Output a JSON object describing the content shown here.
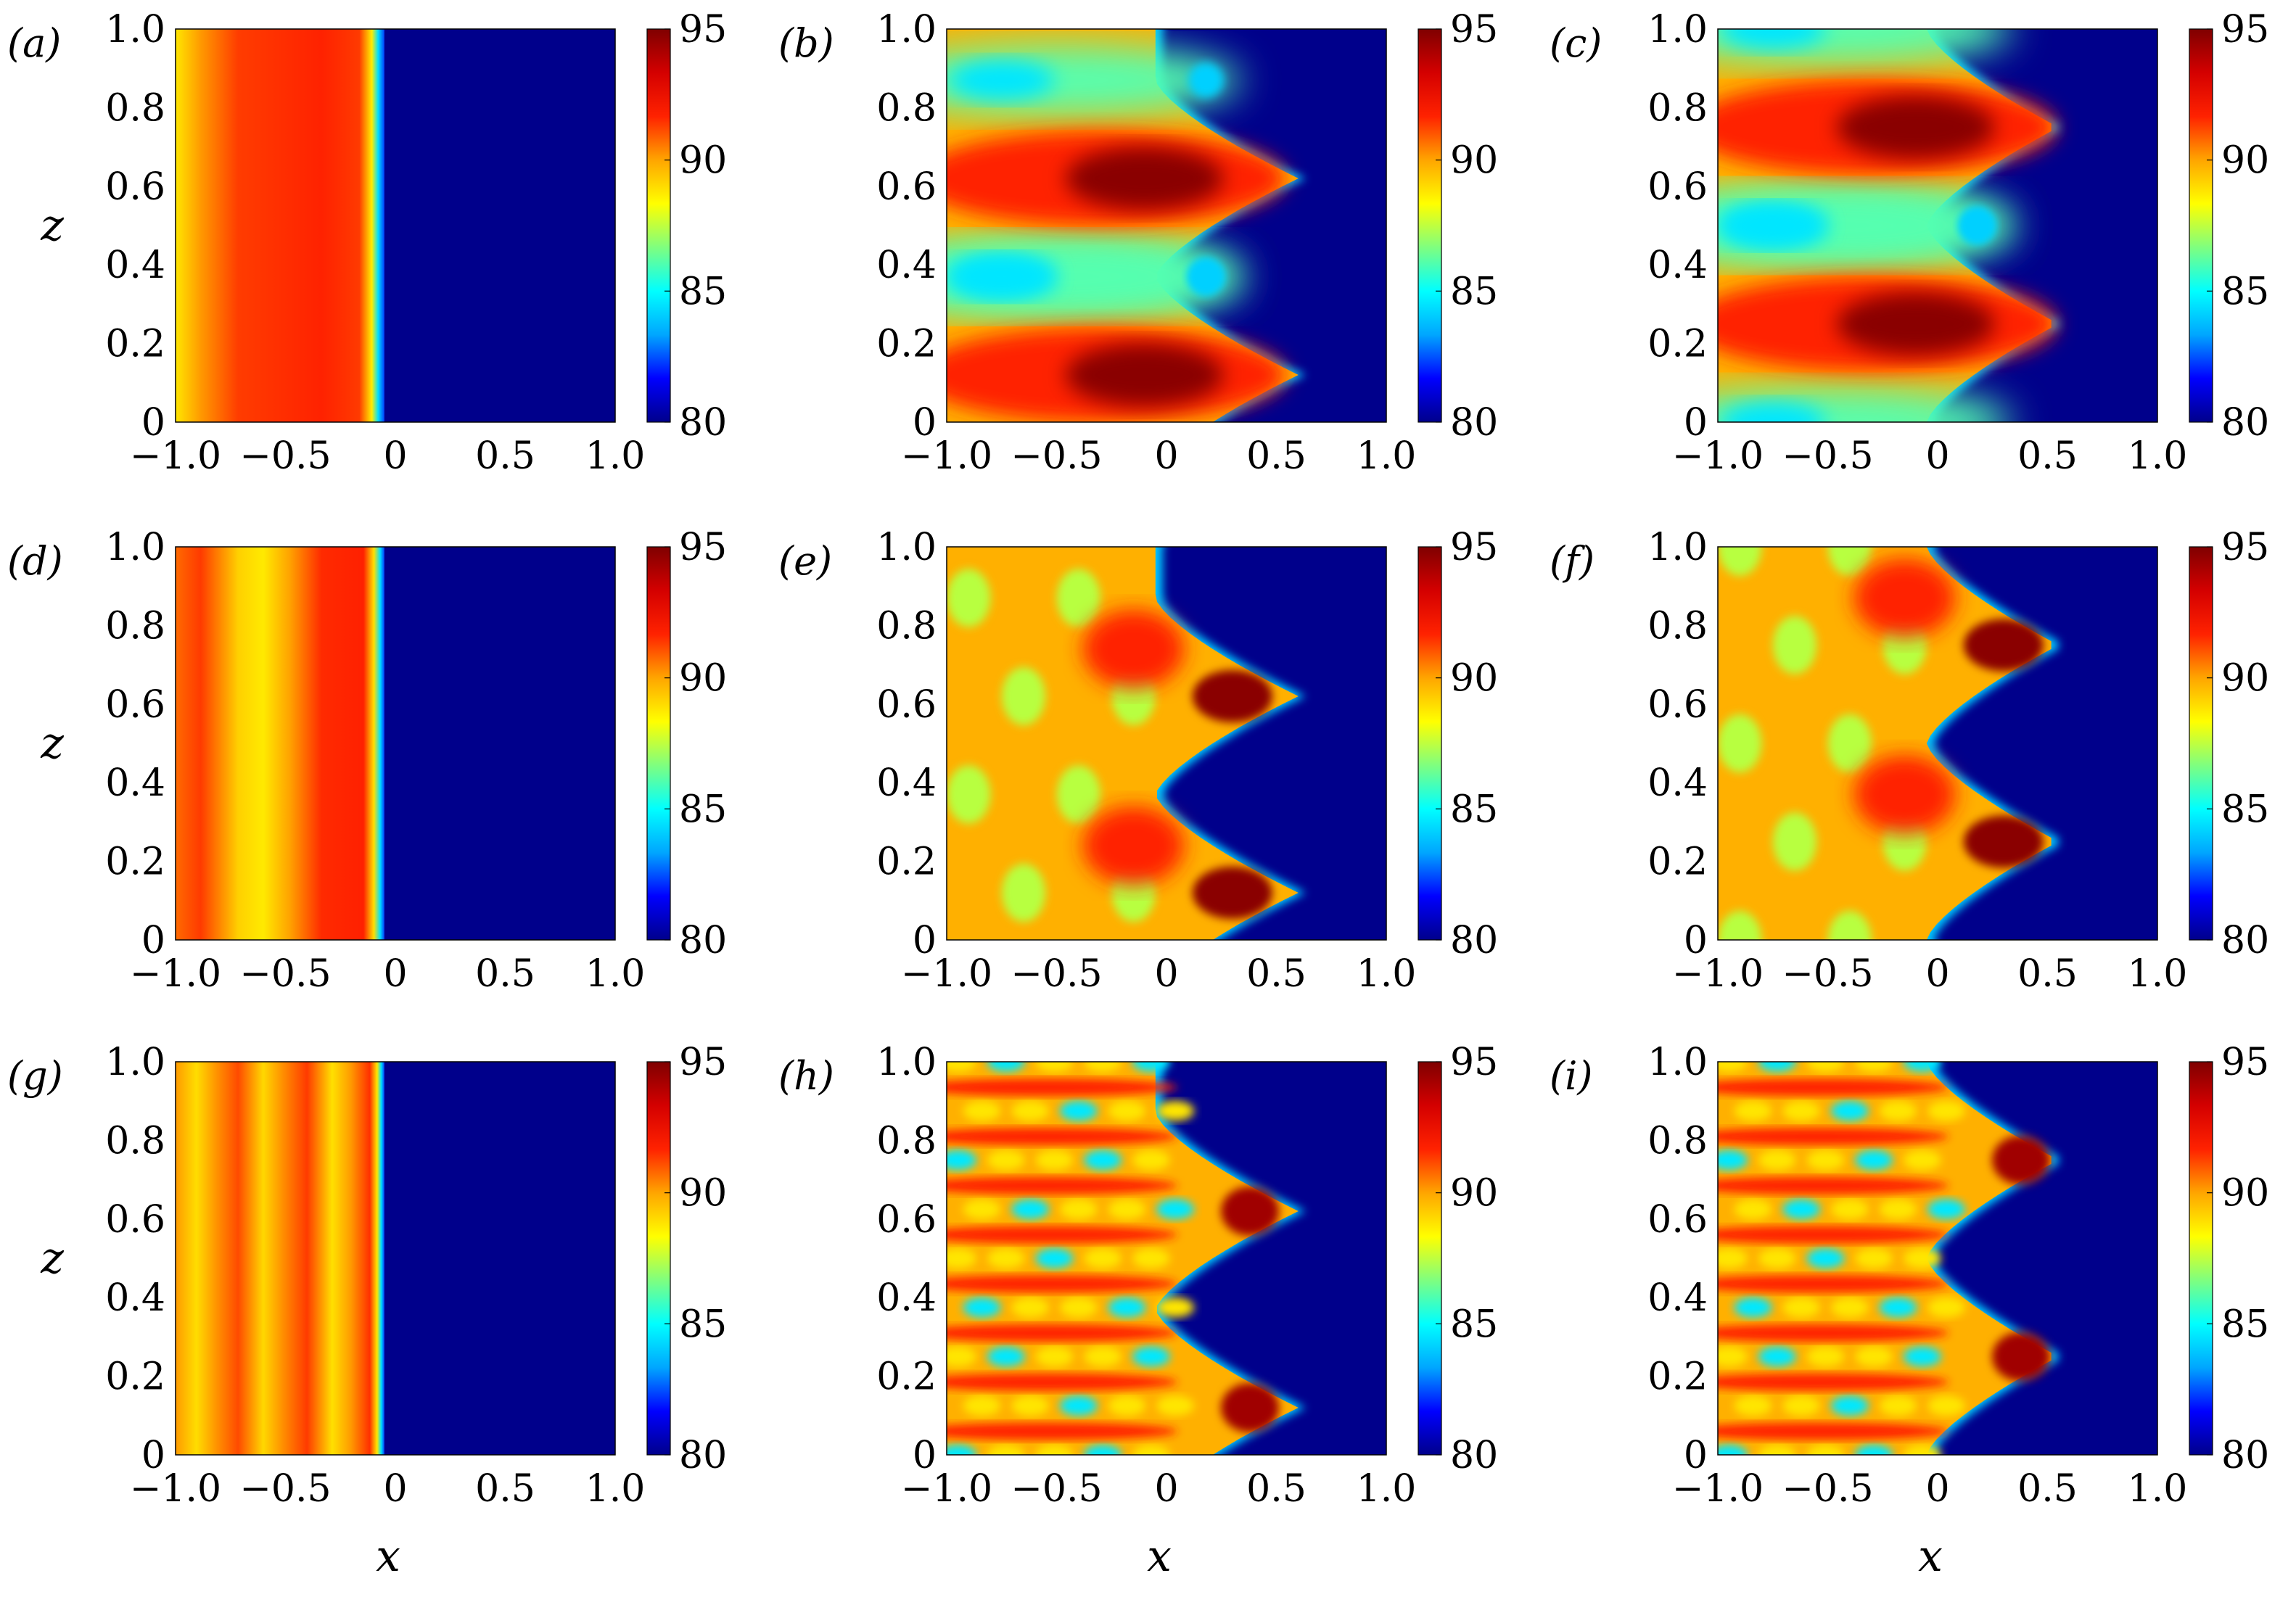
{
  "figure": {
    "x_axis_title": "x",
    "z_axis_title": "z",
    "colorscale": [
      "#00008b",
      "#0000ff",
      "#00a6ff",
      "#00ffff",
      "#7fff7f",
      "#ffff00",
      "#ffa500",
      "#ff2200",
      "#d40000",
      "#7f0000"
    ]
  },
  "chart_data": [
    {
      "type": "heatmap",
      "panel": "(a)",
      "pattern": "bands",
      "stripes": 1,
      "front_x": -0.05,
      "xlim": [
        -1.0,
        1.0
      ],
      "ylim": [
        0,
        1.0
      ],
      "xticks": [
        "−1.0",
        "−0.5",
        "0",
        "0.5",
        "1.0"
      ],
      "yticks": [
        "0",
        "0.2",
        "0.4",
        "0.6",
        "0.8",
        "1.0"
      ],
      "colorbar": {
        "min": 80,
        "max": 95,
        "ticks": [
          "80",
          "85",
          "90",
          "95"
        ]
      },
      "xlabel": "",
      "ylabel": "z"
    },
    {
      "type": "heatmap",
      "panel": "(b)",
      "pattern": "fingers",
      "fingers_z": [
        0.12,
        0.62
      ],
      "tip_x": 0.6,
      "xlim": [
        -1.0,
        1.0
      ],
      "ylim": [
        0,
        1.0
      ],
      "xticks": [
        "−1.0",
        "−0.5",
        "0",
        "0.5",
        "1.0"
      ],
      "yticks": [
        "0",
        "0.2",
        "0.4",
        "0.6",
        "0.8",
        "1.0"
      ],
      "colorbar": {
        "min": 80,
        "max": 95,
        "ticks": [
          "80",
          "85",
          "90",
          "95"
        ]
      },
      "xlabel": "",
      "ylabel": ""
    },
    {
      "type": "heatmap",
      "panel": "(c)",
      "pattern": "fingers",
      "fingers_z": [
        0.25,
        0.75
      ],
      "tip_x": 0.55,
      "xlim": [
        -1.0,
        1.0
      ],
      "ylim": [
        0,
        1.0
      ],
      "xticks": [
        "−1.0",
        "−0.5",
        "0",
        "0.5",
        "1.0"
      ],
      "yticks": [
        "0",
        "0.2",
        "0.4",
        "0.6",
        "0.8",
        "1.0"
      ],
      "colorbar": {
        "min": 80,
        "max": 95,
        "ticks": [
          "80",
          "85",
          "90",
          "95"
        ]
      },
      "xlabel": "",
      "ylabel": ""
    },
    {
      "type": "heatmap",
      "panel": "(d)",
      "pattern": "bands",
      "stripes": 2,
      "front_x": -0.05,
      "xlim": [
        -1.0,
        1.0
      ],
      "ylim": [
        0,
        1.0
      ],
      "xticks": [
        "−1.0",
        "−0.5",
        "0",
        "0.5",
        "1.0"
      ],
      "yticks": [
        "0",
        "0.2",
        "0.4",
        "0.6",
        "0.8",
        "1.0"
      ],
      "colorbar": {
        "min": 80,
        "max": 95,
        "ticks": [
          "80",
          "85",
          "90",
          "95"
        ]
      },
      "xlabel": "",
      "ylabel": "z"
    },
    {
      "type": "heatmap",
      "panel": "(e)",
      "pattern": "spots",
      "fingers_z": [
        0.12,
        0.62
      ],
      "tip_x": 0.6,
      "xlim": [
        -1.0,
        1.0
      ],
      "ylim": [
        0,
        1.0
      ],
      "xticks": [
        "−1.0",
        "−0.5",
        "0",
        "0.5",
        "1.0"
      ],
      "yticks": [
        "0",
        "0.2",
        "0.4",
        "0.6",
        "0.8",
        "1.0"
      ],
      "colorbar": {
        "min": 80,
        "max": 95,
        "ticks": [
          "80",
          "85",
          "90",
          "95"
        ]
      },
      "xlabel": "",
      "ylabel": ""
    },
    {
      "type": "heatmap",
      "panel": "(f)",
      "pattern": "spots",
      "fingers_z": [
        0.25,
        0.75
      ],
      "tip_x": 0.55,
      "xlim": [
        -1.0,
        1.0
      ],
      "ylim": [
        0,
        1.0
      ],
      "xticks": [
        "−1.0",
        "−0.5",
        "0",
        "0.5",
        "1.0"
      ],
      "yticks": [
        "0",
        "0.2",
        "0.4",
        "0.6",
        "0.8",
        "1.0"
      ],
      "colorbar": {
        "min": 80,
        "max": 95,
        "ticks": [
          "80",
          "85",
          "90",
          "95"
        ]
      },
      "xlabel": "",
      "ylabel": ""
    },
    {
      "type": "heatmap",
      "panel": "(g)",
      "pattern": "bands",
      "stripes": 3,
      "front_x": -0.05,
      "xlim": [
        -1.0,
        1.0
      ],
      "ylim": [
        0,
        1.0
      ],
      "xticks": [
        "−1.0",
        "−0.5",
        "0",
        "0.5",
        "1.0"
      ],
      "yticks": [
        "0",
        "0.2",
        "0.4",
        "0.6",
        "0.8",
        "1.0"
      ],
      "colorbar": {
        "min": 80,
        "max": 95,
        "ticks": [
          "80",
          "85",
          "90",
          "95"
        ]
      },
      "xlabel": "x",
      "ylabel": "z"
    },
    {
      "type": "heatmap",
      "panel": "(h)",
      "pattern": "complex",
      "fingers_z": [
        0.12,
        0.62
      ],
      "tip_x": 0.6,
      "xlim": [
        -1.0,
        1.0
      ],
      "ylim": [
        0,
        1.0
      ],
      "xticks": [
        "−1.0",
        "−0.5",
        "0",
        "0.5",
        "1.0"
      ],
      "yticks": [
        "0",
        "0.2",
        "0.4",
        "0.6",
        "0.8",
        "1.0"
      ],
      "colorbar": {
        "min": 80,
        "max": 95,
        "ticks": [
          "80",
          "85",
          "90",
          "95"
        ]
      },
      "xlabel": "x",
      "ylabel": ""
    },
    {
      "type": "heatmap",
      "panel": "(i)",
      "pattern": "complex",
      "fingers_z": [
        0.25,
        0.75
      ],
      "tip_x": 0.55,
      "xlim": [
        -1.0,
        1.0
      ],
      "ylim": [
        0,
        1.0
      ],
      "xticks": [
        "−1.0",
        "−0.5",
        "0",
        "0.5",
        "1.0"
      ],
      "yticks": [
        "0",
        "0.2",
        "0.4",
        "0.6",
        "0.8",
        "1.0"
      ],
      "colorbar": {
        "min": 80,
        "max": 95,
        "ticks": [
          "80",
          "85",
          "90",
          "95"
        ]
      },
      "xlabel": "x",
      "ylabel": ""
    }
  ]
}
